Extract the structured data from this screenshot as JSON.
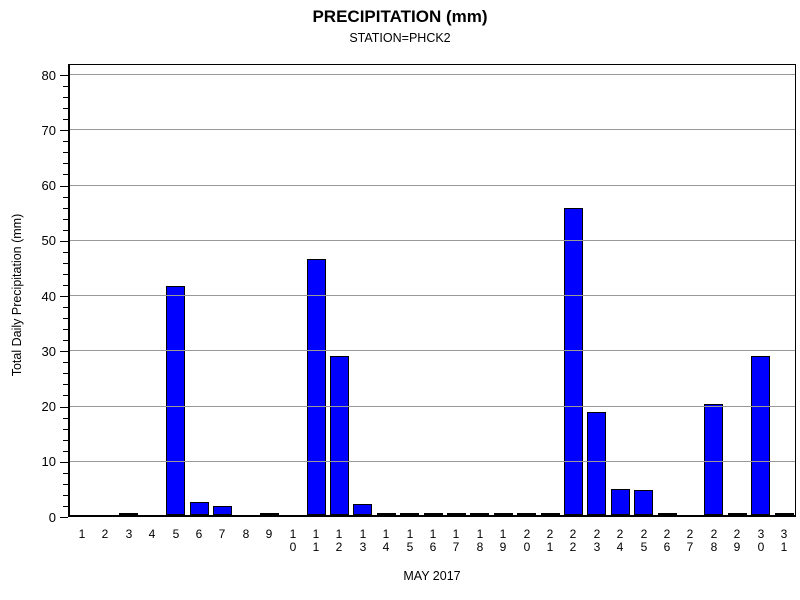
{
  "chart_data": {
    "type": "bar",
    "title": "PRECIPITATION (mm)",
    "subtitle": "STATION=PHCK2",
    "xlabel": "MAY 2017",
    "ylabel": "Total Daily Precipitation (mm)",
    "ylim": [
      0,
      80
    ],
    "ytick_interval": 10,
    "yminor_interval": 2,
    "ytick_labels": [
      "0",
      "10",
      "20",
      "30",
      "40",
      "50",
      "60",
      "70",
      "80"
    ],
    "grid": "horizontal-major-gray-over-bars",
    "legend": "none",
    "bar_color": "#0000ff",
    "bar_outline_color": "#000000",
    "gridline_color": "#999999",
    "categories": [
      1,
      2,
      3,
      4,
      5,
      6,
      7,
      8,
      9,
      10,
      11,
      12,
      13,
      14,
      15,
      16,
      17,
      18,
      19,
      20,
      21,
      22,
      23,
      24,
      25,
      26,
      27,
      28,
      29,
      30,
      31
    ],
    "values": [
      null,
      null,
      0.3,
      null,
      41.4,
      2.4,
      1.7,
      null,
      0.3,
      null,
      46.4,
      28.8,
      2.0,
      0.3,
      0.3,
      0.3,
      0.3,
      0.3,
      0.3,
      0.3,
      0.3,
      55.5,
      18.7,
      4.7,
      4.5,
      0.3,
      null,
      20.0,
      0.3,
      28.8,
      0.3
    ]
  }
}
